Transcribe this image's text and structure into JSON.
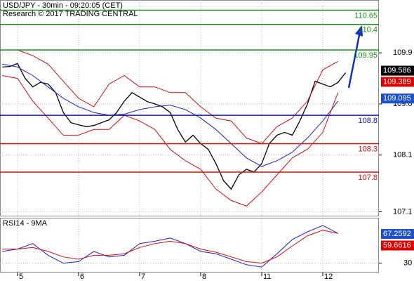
{
  "chart_data": {
    "type": "line",
    "title": "USD/JPY - 30min - 09:20:05 (CET)",
    "subtitle": "Research © 2017 TRADING CENTRAL",
    "xlim": [
      -0.287,
      5.92
    ],
    "xticks": [
      {
        "value": 0,
        "label": "5"
      },
      {
        "value": 1,
        "label": "6"
      },
      {
        "value": 2,
        "label": "7"
      },
      {
        "value": 3,
        "label": "8"
      },
      {
        "value": 4,
        "label": "11"
      },
      {
        "value": 5,
        "label": "12"
      }
    ],
    "ylim": [
      107.02,
      110.83
    ],
    "yticks": [
      109.9,
      {
        "value": 109,
        "label": "109.0"
      },
      108.1,
      107.1
    ],
    "grid": true,
    "series": [
      {
        "name": "USD/JPY",
        "color": "#000000",
        "x": [
          -0.25,
          -0.125,
          0,
          0.125,
          0.25,
          0.375,
          0.5,
          0.625,
          0.75,
          0.875,
          1,
          1.125,
          1.25,
          1.375,
          1.5,
          1.625,
          1.75,
          1.875,
          2,
          2.125,
          2.25,
          2.375,
          2.5,
          2.625,
          2.75,
          2.875,
          3,
          3.125,
          3.25,
          3.375,
          3.5,
          3.625,
          3.75,
          3.875,
          4,
          4.125,
          4.25,
          4.375,
          4.5,
          4.625,
          4.75,
          4.875,
          5,
          5.125,
          5.25,
          5.375
        ],
        "values": [
          109.65,
          109.66,
          109.71,
          109.45,
          109.3,
          109.38,
          109.35,
          109.2,
          108.85,
          108.67,
          108.63,
          108.6,
          108.62,
          108.67,
          108.72,
          108.85,
          109.05,
          109.2,
          109.12,
          109.04,
          109.0,
          108.95,
          108.85,
          108.55,
          108.33,
          108.45,
          108.3,
          108.2,
          107.95,
          107.65,
          107.5,
          107.75,
          107.85,
          107.8,
          107.95,
          108.3,
          108.45,
          108.5,
          108.45,
          108.7,
          109.0,
          109.4,
          109.35,
          109.3,
          109.38,
          109.55
        ]
      },
      {
        "color": "#1f1fd0",
        "x": [
          -0.25,
          0,
          0.25,
          0.5,
          0.75,
          1,
          1.25,
          1.5,
          1.75,
          2,
          2.25,
          2.5,
          2.75,
          3,
          3.25,
          3.5,
          3.75,
          4,
          4.25,
          4.5,
          4.75,
          5,
          5.25
        ],
        "values": [
          109.7,
          109.65,
          109.5,
          109.3,
          109.1,
          108.95,
          108.85,
          108.8,
          108.82,
          108.9,
          108.95,
          108.98,
          108.9,
          108.75,
          108.55,
          108.3,
          108.05,
          107.9,
          108.0,
          108.15,
          108.4,
          108.7,
          109.05
        ]
      },
      {
        "color": "#d01010",
        "x": [
          -0.25,
          0,
          0.25,
          0.5,
          0.75,
          1,
          1.25,
          1.5,
          1.75,
          2,
          2.25,
          2.5,
          2.75,
          3,
          3.25,
          3.5,
          3.75,
          4,
          4.25,
          4.5,
          4.75,
          5,
          5.25
        ],
        "values": [
          109.95,
          109.95,
          109.85,
          109.7,
          109.4,
          109.1,
          108.95,
          109.35,
          109.5,
          109.3,
          109.3,
          109.2,
          109.2,
          108.95,
          108.75,
          108.7,
          108.4,
          108.3,
          108.6,
          108.75,
          109.05,
          109.6,
          109.75
        ]
      },
      {
        "color": "#d01010",
        "x": [
          -0.25,
          0,
          0.25,
          0.5,
          0.75,
          1,
          1.25,
          1.5,
          1.75,
          2,
          2.25,
          2.5,
          2.75,
          3,
          3.25,
          3.5,
          3.75,
          4,
          4.25,
          4.5,
          4.75,
          5,
          5.25
        ],
        "values": [
          109.5,
          109.45,
          109.05,
          108.75,
          108.45,
          108.45,
          108.55,
          108.55,
          108.8,
          108.7,
          108.55,
          108.2,
          108.0,
          107.85,
          107.5,
          107.3,
          107.2,
          107.45,
          107.75,
          108.05,
          108.2,
          108.5,
          109.2
        ]
      }
    ],
    "levels": [
      {
        "value": 110.65,
        "color": "#1a8a1a"
      },
      {
        "value": 110.4,
        "color": "#1a8a1a"
      },
      {
        "value": 109.95,
        "color": "#1a8a1a"
      },
      {
        "value": 108.8,
        "color": "#1010c8"
      },
      {
        "value": 108.3,
        "color": "#d01010"
      },
      {
        "value": 107.8,
        "color": "#d01010"
      }
    ],
    "price_labels": [
      {
        "value": 109.586,
        "color": "#000000"
      },
      {
        "value": 109.389,
        "color": "#e00000"
      },
      {
        "value": 109.095,
        "color": "#1a50d0"
      }
    ],
    "rsi": {
      "title": "RSI14 - 9MA",
      "ylim": [
        18,
        87
      ],
      "yticks": [
        30
      ],
      "series": [
        {
          "color": "#1f1fd0",
          "values": [
            45,
            48,
            55,
            40,
            30,
            32,
            45,
            38,
            40,
            55,
            58,
            62,
            55,
            45,
            42,
            35,
            28,
            25,
            42,
            60,
            70,
            78,
            68
          ]
        },
        {
          "color": "#d01010",
          "values": [
            48,
            48,
            50,
            45,
            38,
            35,
            40,
            40,
            42,
            50,
            55,
            58,
            55,
            48,
            44,
            38,
            32,
            30,
            38,
            52,
            65,
            72,
            68
          ]
        }
      ],
      "labels": [
        {
          "value": 67.2592,
          "color": "#1a50d0"
        },
        {
          "value": 59.6616,
          "color": "#e00000"
        }
      ]
    }
  }
}
